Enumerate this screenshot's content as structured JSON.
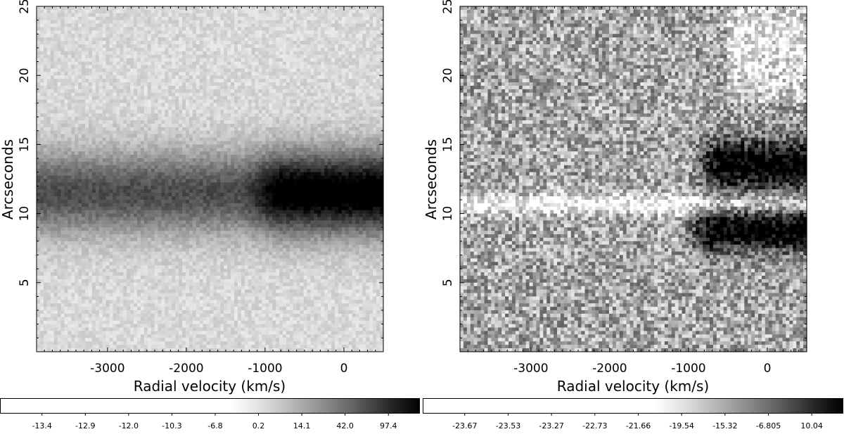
{
  "chart_data": [
    {
      "type": "heatmap",
      "xlabel": "Radial velocity (km/s)",
      "ylabel": "Arcseconds",
      "xlim": [
        -3900,
        500
      ],
      "ylim": [
        0,
        25
      ],
      "xticks": [
        -3000,
        -2000,
        -1000,
        0
      ],
      "yticks": [
        5,
        10,
        15,
        20,
        25
      ],
      "colormap": "gray_r",
      "colorbar_labels": [
        "-13.4",
        "-12.9",
        "-12.0",
        "-10.3",
        "-6.8",
        "0.2",
        "14.1",
        "42.0",
        "97.4"
      ],
      "features": [
        {
          "kind": "dark band",
          "y_center": 11.5,
          "y_halfwidth": 2.3,
          "x_range": [
            -3900,
            500
          ],
          "darkest_from_x": -1300
        }
      ]
    },
    {
      "type": "heatmap",
      "xlabel": "Radial velocity (km/s)",
      "ylabel": "Arcseconds",
      "xlim": [
        -3900,
        500
      ],
      "ylim": [
        0,
        25
      ],
      "xticks": [
        -3000,
        -2000,
        -1000,
        0
      ],
      "yticks": [
        5,
        10,
        15,
        20,
        25
      ],
      "colormap": "gray_r",
      "colorbar_labels": [
        "-23.67",
        "-23.53",
        "-23.27",
        "-22.73",
        "-21.66",
        "-19.54",
        "-15.32",
        "-6.805",
        "10.04"
      ],
      "features": [
        {
          "kind": "dark blob",
          "y_center": 13.5,
          "x_range": [
            -1000,
            500
          ]
        },
        {
          "kind": "dark blob",
          "y_center": 8.8,
          "x_range": [
            -1100,
            500
          ]
        },
        {
          "kind": "bright stripe",
          "y_center": 10.7,
          "x_range": [
            -3900,
            500
          ]
        }
      ]
    }
  ]
}
